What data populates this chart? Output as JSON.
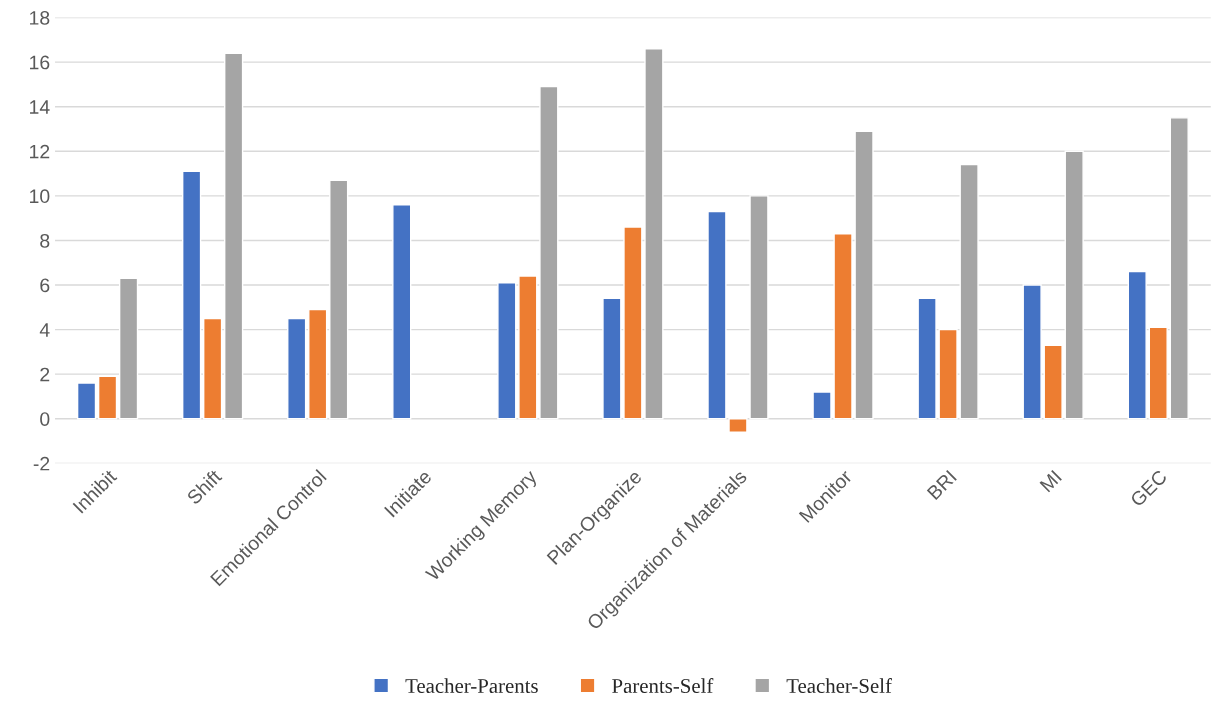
{
  "chart_data": {
    "type": "bar",
    "categories": [
      "Inhibit",
      "Shift",
      "Emotional Control",
      "Initiate",
      "Working Memory",
      "Plan-Organize",
      "Organization of Materials",
      "Monitor",
      "BRI",
      "MI",
      "GEC"
    ],
    "series": [
      {
        "name": "Teacher-Parents",
        "color": "#4472c4",
        "values": [
          1.6,
          11.1,
          4.5,
          9.6,
          6.1,
          5.4,
          9.3,
          1.2,
          5.4,
          6.0,
          6.6
        ]
      },
      {
        "name": "Parents-Self",
        "color": "#ed7d31",
        "values": [
          1.9,
          4.5,
          4.9,
          null,
          6.4,
          8.6,
          -0.6,
          8.3,
          4.0,
          3.3,
          4.1
        ]
      },
      {
        "name": "Teacher-Self",
        "color": "#a5a5a5",
        "values": [
          6.3,
          16.4,
          10.7,
          null,
          14.9,
          16.6,
          10.0,
          12.9,
          11.4,
          12.0,
          13.5
        ]
      }
    ],
    "ylim": [
      -2,
      18
    ],
    "yticks": [
      -2,
      0,
      2,
      4,
      6,
      8,
      10,
      12,
      14,
      16,
      18
    ],
    "grid": "y",
    "legend": "bottom"
  }
}
